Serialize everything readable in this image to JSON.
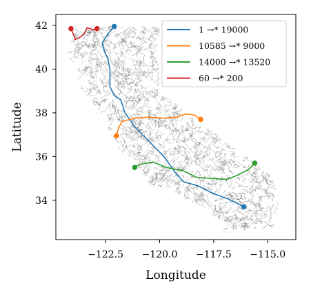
{
  "chart_data": {
    "type": "line",
    "xlabel": "Longitude",
    "ylabel": "Latitude",
    "xlim": [
      -124.8,
      -113.7
    ],
    "ylim": [
      32.2,
      42.5
    ],
    "xticks": [
      -122.5,
      -120.0,
      -117.5,
      -115.0
    ],
    "xtick_labels": [
      "−122.5",
      "−120.0",
      "−117.5",
      "−115.0"
    ],
    "yticks": [
      34,
      36,
      38,
      40,
      42
    ],
    "ytick_labels": [
      "34",
      "36",
      "38",
      "40",
      "42"
    ],
    "grid": false,
    "legend_position": "top-right",
    "background_network": "California road network (gray)",
    "series": [
      {
        "name": "1 →* 19000",
        "color": "#1f77b4",
        "points": [
          [
            -122.1,
            41.95
          ],
          [
            -122.4,
            41.6
          ],
          [
            -122.65,
            41.2
          ],
          [
            -122.55,
            40.8
          ],
          [
            -122.4,
            40.5
          ],
          [
            -122.3,
            40.0
          ],
          [
            -122.3,
            39.2
          ],
          [
            -122.1,
            38.8
          ],
          [
            -121.8,
            38.6
          ],
          [
            -121.6,
            38.0
          ],
          [
            -121.1,
            37.3
          ],
          [
            -120.5,
            36.7
          ],
          [
            -119.8,
            36.0
          ],
          [
            -119.3,
            35.3
          ],
          [
            -118.9,
            34.85
          ],
          [
            -118.2,
            34.65
          ],
          [
            -117.5,
            34.3
          ],
          [
            -116.8,
            34.05
          ],
          [
            -116.1,
            33.7
          ]
        ]
      },
      {
        "name": "10585 →* 9000",
        "color": "#ff7f0e",
        "points": [
          [
            -122.0,
            36.95
          ],
          [
            -121.9,
            37.3
          ],
          [
            -121.75,
            37.6
          ],
          [
            -121.2,
            37.75
          ],
          [
            -120.5,
            37.8
          ],
          [
            -119.8,
            37.75
          ],
          [
            -119.2,
            37.8
          ],
          [
            -118.8,
            37.95
          ],
          [
            -118.4,
            37.9
          ],
          [
            -118.1,
            37.7
          ]
        ]
      },
      {
        "name": "14000 →* 13520",
        "color": "#2ca02c",
        "points": [
          [
            -121.15,
            35.5
          ],
          [
            -120.9,
            35.65
          ],
          [
            -120.3,
            35.75
          ],
          [
            -119.7,
            35.5
          ],
          [
            -118.9,
            35.35
          ],
          [
            -118.3,
            35.05
          ],
          [
            -117.6,
            35.0
          ],
          [
            -116.9,
            34.95
          ],
          [
            -116.5,
            35.1
          ],
          [
            -115.9,
            35.4
          ],
          [
            -115.6,
            35.7
          ]
        ]
      },
      {
        "name": "60 →* 200",
        "color": "#d62728",
        "points": [
          [
            -124.1,
            41.85
          ],
          [
            -123.95,
            41.5
          ],
          [
            -123.9,
            41.35
          ],
          [
            -123.7,
            41.45
          ],
          [
            -123.5,
            41.6
          ],
          [
            -123.35,
            41.9
          ],
          [
            -123.1,
            41.8
          ],
          [
            -122.9,
            41.85
          ]
        ]
      }
    ]
  }
}
